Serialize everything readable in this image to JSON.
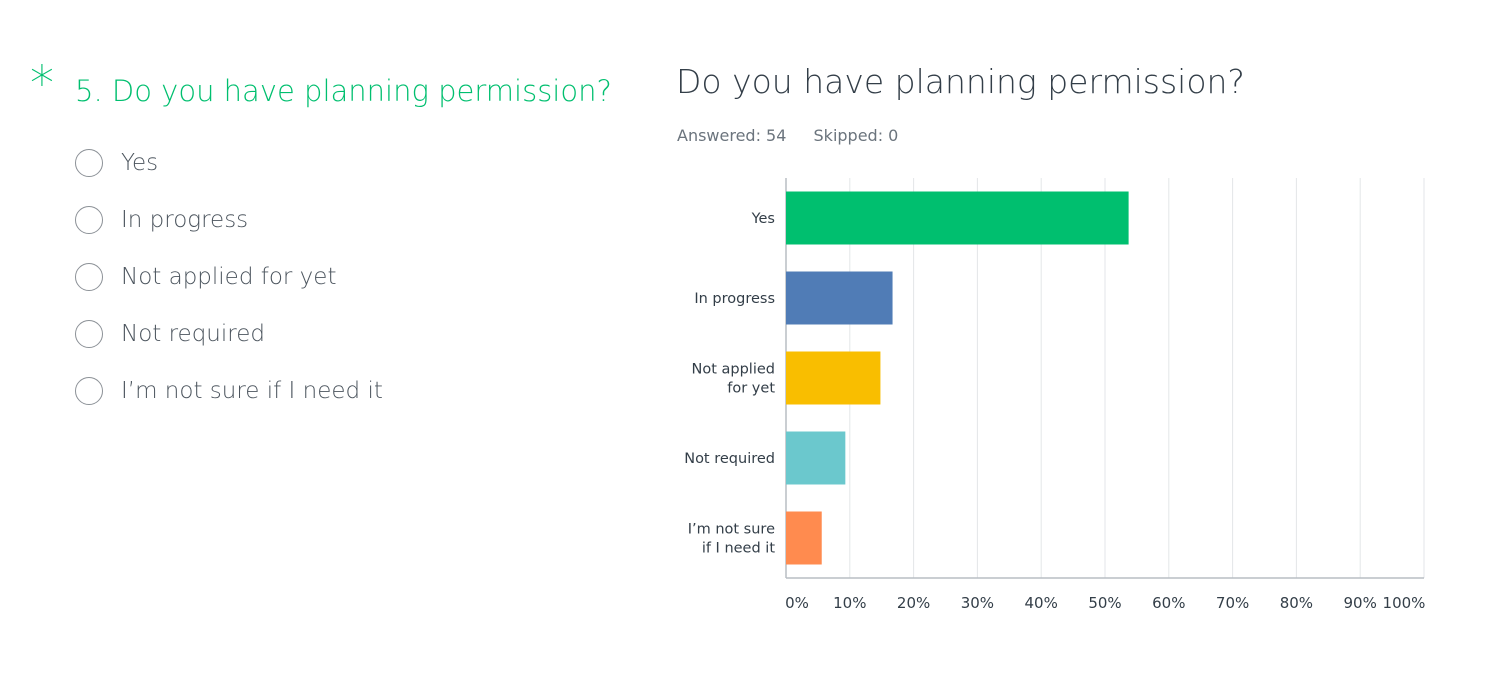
{
  "question": {
    "required_marker": "*",
    "text": "5. Do you have planning permission?",
    "options": [
      {
        "label": "Yes"
      },
      {
        "label": "In progress"
      },
      {
        "label": "Not applied for yet"
      },
      {
        "label": "Not required"
      },
      {
        "label": "I’m not sure if I need it"
      }
    ]
  },
  "results": {
    "title": "Do you have planning permission?",
    "answered": "Answered: 54",
    "skipped": "Skipped: 0"
  },
  "chart_data": {
    "type": "bar",
    "orientation": "horizontal",
    "title": "Do you have planning permission?",
    "categories": [
      [
        "Yes"
      ],
      [
        "In progress"
      ],
      [
        "Not applied",
        "for yet"
      ],
      [
        "Not required"
      ],
      [
        "I’m not sure",
        "if I need it"
      ]
    ],
    "values": [
      53.7,
      16.7,
      14.8,
      9.3,
      5.6
    ],
    "colors": [
      "#00bf6f",
      "#507cb6",
      "#f9be00",
      "#6bc8cd",
      "#ff8b4f"
    ],
    "xlim": [
      0,
      100
    ],
    "ticks": [
      0,
      10,
      20,
      30,
      40,
      50,
      60,
      70,
      80,
      90,
      100
    ],
    "tick_labels": [
      "0%",
      "10%",
      "20%",
      "30%",
      "40%",
      "50%",
      "60%",
      "70%",
      "80%",
      "90%",
      "100%"
    ],
    "grid": true
  }
}
